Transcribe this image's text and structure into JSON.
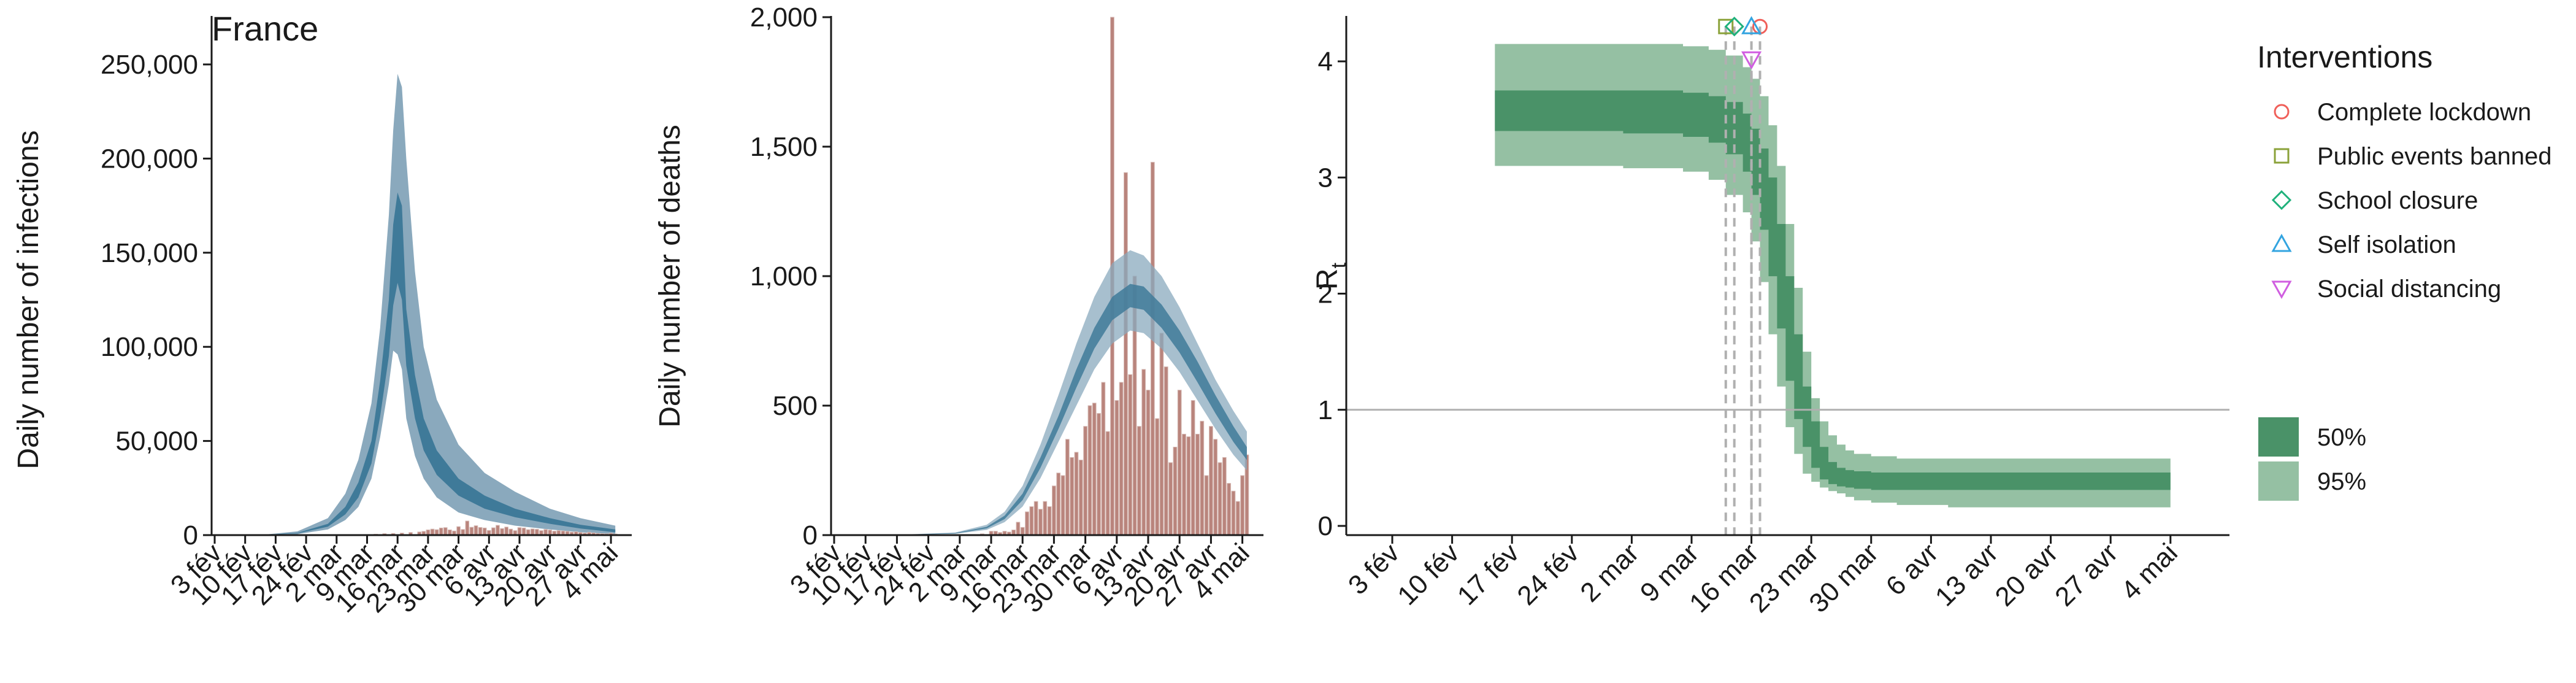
{
  "colors": {
    "band95": "#8aa9bd",
    "band50": "#3f7a99",
    "median": "#3f7a99",
    "bars": "#b9847c",
    "bar_outline": "#d8bdb8",
    "rt95": "#95c0a3",
    "rt50": "#4a9268",
    "refline": "#b0b0b0",
    "dashed": "#b0b0b0",
    "axis": "#1a1a1a"
  },
  "chart_data": [
    {
      "type": "area",
      "title": "France",
      "xlabel": "",
      "ylabel": "Daily number of infections",
      "x_start": "2020-02-01",
      "x_tick_labels": [
        "3 fév",
        "10 fév",
        "17 fév",
        "24 fév",
        "2 mar",
        "9 mar",
        "16 mar",
        "23 mar",
        "30 mar",
        "6 avr",
        "13 avr",
        "20 avr",
        "27 avr",
        "4 mai"
      ],
      "ylim": [
        0,
        250000
      ],
      "y_tick_labels": [
        "0",
        "50,000",
        "100,000",
        "150,000",
        "200,000",
        "250,000"
      ],
      "y_tick_values": [
        0,
        50000,
        100000,
        150000,
        200000,
        250000
      ],
      "series": [
        {
          "kind": "band95",
          "x": [
            "2020-02-01",
            "2020-02-15",
            "2020-02-22",
            "2020-02-29",
            "2020-03-04",
            "2020-03-07",
            "2020-03-10",
            "2020-03-12",
            "2020-03-14",
            "2020-03-15",
            "2020-03-16",
            "2020-03-17",
            "2020-03-18",
            "2020-03-20",
            "2020-03-22",
            "2020-03-25",
            "2020-03-30",
            "2020-04-05",
            "2020-04-12",
            "2020-04-20",
            "2020-04-27",
            "2020-05-05"
          ],
          "upper": [
            0,
            400,
            2000,
            9000,
            22000,
            40000,
            70000,
            110000,
            170000,
            215000,
            245000,
            238000,
            200000,
            140000,
            100000,
            72000,
            48000,
            33000,
            23000,
            14000,
            9000,
            5000
          ],
          "lower": [
            0,
            100,
            500,
            3000,
            8000,
            15000,
            30000,
            52000,
            80000,
            98000,
            96000,
            88000,
            62000,
            42000,
            30000,
            20000,
            12000,
            8000,
            5000,
            3000,
            1500,
            500
          ]
        },
        {
          "kind": "band50",
          "x": [
            "2020-02-01",
            "2020-02-15",
            "2020-02-22",
            "2020-02-29",
            "2020-03-04",
            "2020-03-07",
            "2020-03-10",
            "2020-03-12",
            "2020-03-14",
            "2020-03-15",
            "2020-03-16",
            "2020-03-17",
            "2020-03-18",
            "2020-03-20",
            "2020-03-22",
            "2020-03-25",
            "2020-03-30",
            "2020-04-05",
            "2020-04-12",
            "2020-04-20",
            "2020-04-27",
            "2020-05-05"
          ],
          "upper": [
            0,
            250,
            1200,
            6000,
            15000,
            28000,
            50000,
            82000,
            125000,
            165000,
            182000,
            175000,
            120000,
            85000,
            62000,
            45000,
            30000,
            21000,
            14000,
            9000,
            5500,
            3000
          ],
          "lower": [
            0,
            180,
            900,
            4500,
            11000,
            20000,
            38000,
            63000,
            95000,
            122000,
            134000,
            125000,
            90000,
            62000,
            45000,
            32000,
            21000,
            14000,
            9500,
            6000,
            3500,
            1500
          ]
        }
      ],
      "bars": {
        "x": [
          "2020-03-01",
          "2020-03-03",
          "2020-03-05",
          "2020-03-07",
          "2020-03-09",
          "2020-03-11",
          "2020-03-13",
          "2020-03-15",
          "2020-03-17",
          "2020-03-19",
          "2020-03-21",
          "2020-03-22",
          "2020-03-23",
          "2020-03-24",
          "2020-03-25",
          "2020-03-26",
          "2020-03-27",
          "2020-03-28",
          "2020-03-29",
          "2020-03-30",
          "2020-03-31",
          "2020-04-01",
          "2020-04-02",
          "2020-04-03",
          "2020-04-04",
          "2020-04-05",
          "2020-04-06",
          "2020-04-07",
          "2020-04-08",
          "2020-04-09",
          "2020-04-10",
          "2020-04-11",
          "2020-04-12",
          "2020-04-13",
          "2020-04-14",
          "2020-04-15",
          "2020-04-16",
          "2020-04-17",
          "2020-04-18",
          "2020-04-19",
          "2020-04-20",
          "2020-04-21",
          "2020-04-22",
          "2020-04-23",
          "2020-04-24",
          "2020-04-25",
          "2020-04-26",
          "2020-04-27",
          "2020-04-28",
          "2020-04-29",
          "2020-04-30",
          "2020-05-01",
          "2020-05-02",
          "2020-05-03",
          "2020-05-04",
          "2020-05-05"
        ],
        "values": [
          50,
          100,
          150,
          250,
          300,
          500,
          800,
          900,
          1100,
          1400,
          1700,
          2000,
          2800,
          3200,
          2900,
          3800,
          4000,
          2800,
          2200,
          4500,
          3000,
          7500,
          4200,
          5000,
          4100,
          3800,
          2500,
          3900,
          5200,
          3500,
          4300,
          3200,
          2400,
          4000,
          3800,
          2900,
          3300,
          3100,
          2400,
          3000,
          2700,
          2100,
          2400,
          2200,
          2000,
          1600,
          1800,
          1400,
          1100,
          1500,
          1200,
          900,
          800,
          700,
          1000,
          600
        ]
      }
    },
    {
      "type": "bar",
      "title": "",
      "xlabel": "",
      "ylabel": "Daily number of deaths",
      "x_start": "2020-02-01",
      "x_tick_labels": [
        "3 fév",
        "10 fév",
        "17 fév",
        "24 fév",
        "2 mar",
        "9 mar",
        "16 mar",
        "23 mar",
        "30 mar",
        "6 avr",
        "13 avr",
        "20 avr",
        "27 avr",
        "4 mai"
      ],
      "ylim": [
        0,
        2000
      ],
      "y_tick_labels": [
        "0",
        "500",
        "1,000",
        "1,500",
        "2,000"
      ],
      "y_tick_values": [
        0,
        500,
        1000,
        1500,
        2000
      ],
      "series": [
        {
          "kind": "band95",
          "x": [
            "2020-02-15",
            "2020-03-01",
            "2020-03-08",
            "2020-03-12",
            "2020-03-16",
            "2020-03-20",
            "2020-03-24",
            "2020-03-28",
            "2020-04-01",
            "2020-04-05",
            "2020-04-09",
            "2020-04-12",
            "2020-04-16",
            "2020-04-20",
            "2020-04-24",
            "2020-04-28",
            "2020-05-02",
            "2020-05-05"
          ],
          "upper": [
            0,
            10,
            40,
            90,
            190,
            350,
            540,
            740,
            920,
            1050,
            1100,
            1080,
            1000,
            880,
            740,
            600,
            480,
            400
          ],
          "lower": [
            0,
            5,
            20,
            50,
            110,
            220,
            360,
            500,
            640,
            740,
            790,
            780,
            720,
            630,
            520,
            410,
            310,
            250
          ]
        },
        {
          "kind": "band50",
          "x": [
            "2020-02-15",
            "2020-03-01",
            "2020-03-08",
            "2020-03-12",
            "2020-03-16",
            "2020-03-20",
            "2020-03-24",
            "2020-03-28",
            "2020-04-01",
            "2020-04-05",
            "2020-04-09",
            "2020-04-12",
            "2020-04-16",
            "2020-04-20",
            "2020-04-24",
            "2020-04-28",
            "2020-05-02",
            "2020-05-05"
          ],
          "upper": [
            0,
            8,
            32,
            75,
            160,
            300,
            460,
            640,
            800,
            920,
            970,
            960,
            890,
            790,
            670,
            540,
            420,
            340
          ],
          "lower": [
            0,
            6,
            26,
            62,
            135,
            260,
            410,
            570,
            720,
            830,
            880,
            870,
            800,
            705,
            590,
            470,
            360,
            290
          ]
        }
      ],
      "bars": {
        "x": [
          "2020-03-06",
          "2020-03-07",
          "2020-03-08",
          "2020-03-09",
          "2020-03-10",
          "2020-03-11",
          "2020-03-12",
          "2020-03-13",
          "2020-03-14",
          "2020-03-15",
          "2020-03-16",
          "2020-03-17",
          "2020-03-18",
          "2020-03-19",
          "2020-03-20",
          "2020-03-21",
          "2020-03-22",
          "2020-03-23",
          "2020-03-24",
          "2020-03-25",
          "2020-03-26",
          "2020-03-27",
          "2020-03-28",
          "2020-03-29",
          "2020-03-30",
          "2020-03-31",
          "2020-04-01",
          "2020-04-02",
          "2020-04-03",
          "2020-04-04",
          "2020-04-05",
          "2020-04-06",
          "2020-04-07",
          "2020-04-08",
          "2020-04-09",
          "2020-04-10",
          "2020-04-11",
          "2020-04-12",
          "2020-04-13",
          "2020-04-14",
          "2020-04-15",
          "2020-04-16",
          "2020-04-17",
          "2020-04-18",
          "2020-04-19",
          "2020-04-20",
          "2020-04-21",
          "2020-04-22",
          "2020-04-23",
          "2020-04-24",
          "2020-04-25",
          "2020-04-26",
          "2020-04-27",
          "2020-04-28",
          "2020-04-29",
          "2020-04-30",
          "2020-05-01",
          "2020-05-02",
          "2020-05-03",
          "2020-05-04",
          "2020-05-05"
        ],
        "values": [
          2,
          5,
          2,
          15,
          15,
          10,
          15,
          12,
          20,
          50,
          30,
          90,
          110,
          130,
          100,
          130,
          110,
          190,
          240,
          230,
          370,
          300,
          320,
          290,
          420,
          500,
          510,
          470,
          590,
          400,
          2000,
          520,
          590,
          1400,
          620,
          1000,
          420,
          640,
          560,
          1440,
          450,
          780,
          650,
          280,
          340,
          560,
          390,
          380,
          520,
          390,
          440,
          230,
          420,
          370,
          280,
          300,
          200,
          170,
          130,
          230,
          310
        ]
      }
    },
    {
      "type": "line",
      "title": "",
      "xlabel": "",
      "ylabel": "R",
      "ylabel_subscript": "t",
      "x_start": "2020-02-01",
      "x_tick_labels": [
        "3 fév",
        "10 fév",
        "17 fév",
        "24 fév",
        "2 mar",
        "9 mar",
        "16 mar",
        "23 mar",
        "30 mar",
        "6 avr",
        "13 avr",
        "20 avr",
        "27 avr",
        "4 mai"
      ],
      "ylim": [
        0,
        4.4
      ],
      "y_tick_labels": [
        "0",
        "1",
        "2",
        "3",
        "4"
      ],
      "y_tick_values": [
        0,
        1,
        2,
        3,
        4
      ],
      "reference_line": 1,
      "series": [
        {
          "kind": "rt95",
          "name": "95%",
          "x": [
            "2020-02-15",
            "2020-03-01",
            "2020-03-08",
            "2020-03-11",
            "2020-03-13",
            "2020-03-15",
            "2020-03-16",
            "2020-03-17",
            "2020-03-18",
            "2020-03-19",
            "2020-03-20",
            "2020-03-21",
            "2020-03-22",
            "2020-03-23",
            "2020-03-24",
            "2020-03-25",
            "2020-03-26",
            "2020-03-27",
            "2020-03-28",
            "2020-03-30",
            "2020-04-02",
            "2020-04-08",
            "2020-05-04"
          ],
          "upper": [
            4.15,
            4.15,
            4.13,
            4.1,
            4.05,
            3.95,
            3.85,
            3.7,
            3.45,
            3.1,
            2.6,
            2.05,
            1.5,
            1.1,
            0.9,
            0.78,
            0.7,
            0.65,
            0.62,
            0.6,
            0.58,
            0.58,
            0.58
          ],
          "lower": [
            3.1,
            3.1,
            3.08,
            3.05,
            2.98,
            2.85,
            2.7,
            2.45,
            2.1,
            1.65,
            1.2,
            0.85,
            0.62,
            0.45,
            0.38,
            0.33,
            0.3,
            0.28,
            0.25,
            0.22,
            0.2,
            0.18,
            0.16
          ]
        },
        {
          "kind": "rt50",
          "name": "50%",
          "x": [
            "2020-02-15",
            "2020-03-01",
            "2020-03-08",
            "2020-03-11",
            "2020-03-13",
            "2020-03-15",
            "2020-03-16",
            "2020-03-17",
            "2020-03-18",
            "2020-03-19",
            "2020-03-20",
            "2020-03-21",
            "2020-03-22",
            "2020-03-23",
            "2020-03-24",
            "2020-03-25",
            "2020-03-26",
            "2020-03-27",
            "2020-03-28",
            "2020-03-30",
            "2020-04-02",
            "2020-04-08",
            "2020-05-04"
          ],
          "upper": [
            3.75,
            3.75,
            3.73,
            3.7,
            3.65,
            3.55,
            3.42,
            3.25,
            3.0,
            2.6,
            2.15,
            1.65,
            1.2,
            0.9,
            0.68,
            0.55,
            0.5,
            0.48,
            0.47,
            0.46,
            0.46,
            0.46,
            0.46
          ],
          "lower": [
            3.4,
            3.4,
            3.38,
            3.35,
            3.3,
            3.2,
            3.05,
            2.85,
            2.55,
            2.15,
            1.7,
            1.25,
            0.92,
            0.68,
            0.5,
            0.4,
            0.36,
            0.34,
            0.33,
            0.32,
            0.31,
            0.31,
            0.31
          ]
        }
      ],
      "interventions": [
        {
          "name": "Complete lockdown",
          "date": "2020-03-17",
          "marker": "circle",
          "color": "#f0605a",
          "y": 4.3
        },
        {
          "name": "Public events banned",
          "date": "2020-03-13",
          "marker": "square",
          "color": "#8ba23a",
          "y": 4.3
        },
        {
          "name": "School closure",
          "date": "2020-03-14",
          "marker": "diamond",
          "color": "#1fb17b",
          "y": 4.3
        },
        {
          "name": "Self isolation",
          "date": "2020-03-16",
          "marker": "triangle-up",
          "color": "#33a4e0",
          "y": 4.3
        },
        {
          "name": "Social distancing",
          "date": "2020-03-16",
          "marker": "triangle-down",
          "color": "#d05ee0",
          "y": 4.02
        }
      ],
      "legend": {
        "title": "Interventions",
        "placement": "right",
        "items": [
          {
            "label": "Complete lockdown",
            "marker": "circle",
            "color": "#f0605a"
          },
          {
            "label": "Public events banned",
            "marker": "square",
            "color": "#8ba23a"
          },
          {
            "label": "School closure",
            "marker": "diamond",
            "color": "#1fb17b"
          },
          {
            "label": "Self isolation",
            "marker": "triangle-up",
            "color": "#33a4e0"
          },
          {
            "label": "Social distancing",
            "marker": "triangle-down",
            "color": "#d05ee0"
          }
        ],
        "bands": [
          {
            "label": "50%",
            "color": "#4a9268"
          },
          {
            "label": "95%",
            "color": "#95c0a3"
          }
        ]
      }
    }
  ]
}
